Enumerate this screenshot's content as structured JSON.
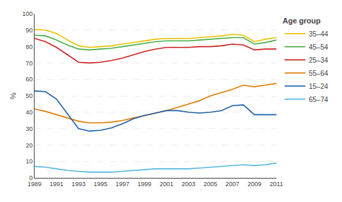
{
  "chart_data": {
    "type": "line",
    "ylabel": "%",
    "legend_title": "Age group",
    "legend": "right",
    "grid": true,
    "x": [
      1989,
      1990,
      1991,
      1992,
      1993,
      1994,
      1995,
      1996,
      1997,
      1998,
      1999,
      2000,
      2001,
      2002,
      2003,
      2004,
      2005,
      2006,
      2007,
      2008,
      2009,
      2010,
      2011
    ],
    "series": [
      {
        "name": "35–44",
        "color": "#e8c200",
        "values": [
          90.5,
          90.0,
          88.0,
          84.0,
          80.5,
          79.5,
          80.0,
          80.5,
          81.5,
          82.5,
          83.5,
          84.5,
          85.0,
          85.0,
          85.0,
          85.5,
          86.0,
          86.5,
          87.5,
          87.0,
          83.0,
          84.5,
          85.5
        ]
      },
      {
        "name": "45–54",
        "color": "#4aad4a",
        "values": [
          87.0,
          86.5,
          84.0,
          81.0,
          78.5,
          78.0,
          78.5,
          79.0,
          80.0,
          81.0,
          82.0,
          83.0,
          83.5,
          83.5,
          83.5,
          84.0,
          84.5,
          85.0,
          85.5,
          85.5,
          81.5,
          82.5,
          84.0
        ]
      },
      {
        "name": "25–34",
        "color": "#cc2222",
        "values": [
          85.0,
          83.0,
          79.5,
          75.0,
          70.5,
          70.0,
          70.5,
          71.5,
          73.0,
          75.0,
          77.0,
          78.5,
          79.5,
          79.5,
          79.5,
          80.0,
          80.0,
          80.5,
          81.5,
          81.0,
          78.0,
          78.5,
          78.5
        ]
      },
      {
        "name": "55–64",
        "color": "#e07b00",
        "values": [
          42.0,
          40.5,
          38.5,
          36.5,
          34.5,
          33.5,
          33.5,
          34.0,
          35.0,
          36.5,
          38.0,
          39.5,
          41.0,
          43.0,
          45.0,
          47.0,
          50.0,
          52.0,
          54.0,
          56.5,
          55.5,
          56.5,
          57.5
        ]
      },
      {
        "name": "15–24",
        "color": "#1e5fa8",
        "values": [
          53.0,
          52.5,
          48.0,
          39.0,
          30.0,
          28.5,
          29.0,
          30.5,
          33.0,
          36.0,
          38.0,
          39.5,
          41.0,
          41.0,
          40.0,
          39.5,
          40.0,
          41.0,
          44.0,
          44.5,
          38.5,
          38.5,
          38.5
        ]
      },
      {
        "name": "65–74",
        "color": "#55b8e0",
        "values": [
          7.0,
          6.5,
          5.5,
          4.5,
          4.0,
          3.5,
          3.5,
          3.5,
          4.0,
          4.5,
          5.0,
          5.5,
          5.5,
          5.5,
          5.5,
          6.0,
          6.5,
          7.0,
          7.5,
          8.0,
          7.5,
          8.0,
          9.0
        ]
      }
    ],
    "xlim": [
      1989,
      2011
    ],
    "ylim": [
      0,
      100
    ],
    "xticks": [
      1989,
      1991,
      1993,
      1995,
      1997,
      1999,
      2001,
      2003,
      2005,
      2007,
      2009,
      2011
    ],
    "yticks": [
      0,
      10,
      20,
      30,
      40,
      50,
      60,
      70,
      80,
      90,
      100
    ]
  }
}
